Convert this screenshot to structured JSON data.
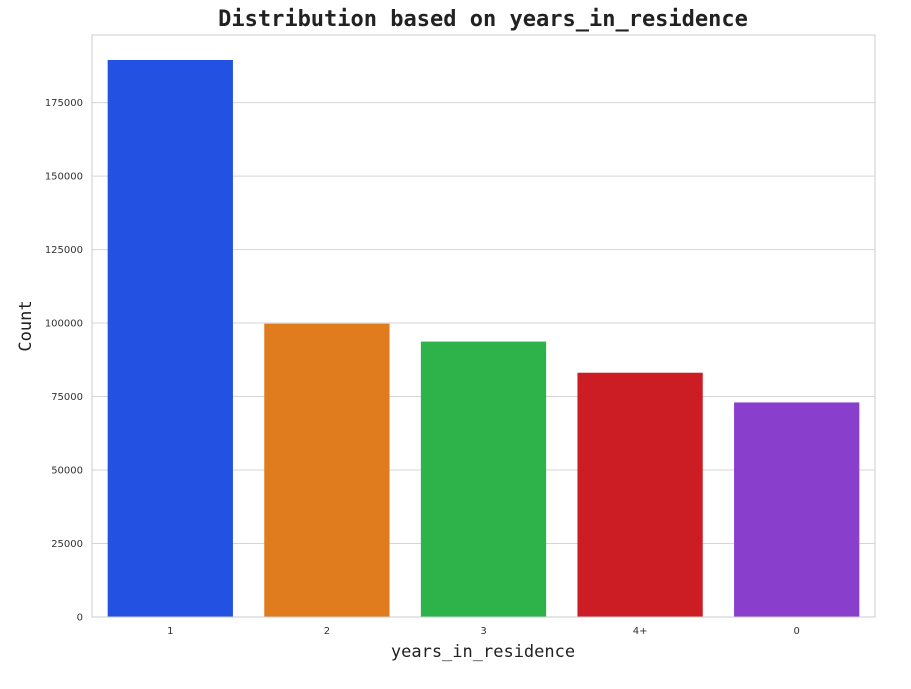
{
  "chart_data": {
    "type": "bar",
    "title": "Distribution based on years_in_residence",
    "xlabel": "years_in_residence",
    "ylabel": "Count",
    "categories": [
      "1",
      "2",
      "3",
      "4+",
      "0"
    ],
    "values": [
      189500,
      99800,
      93700,
      83100,
      73000
    ],
    "colors": [
      "#2352e2",
      "#e07c1e",
      "#2db34a",
      "#cc1c24",
      "#8a3fcc"
    ],
    "ylim": [
      0,
      198000
    ],
    "yticks": [
      0,
      25000,
      50000,
      75000,
      100000,
      125000,
      150000,
      175000
    ],
    "grid": true,
    "legend": "none"
  }
}
